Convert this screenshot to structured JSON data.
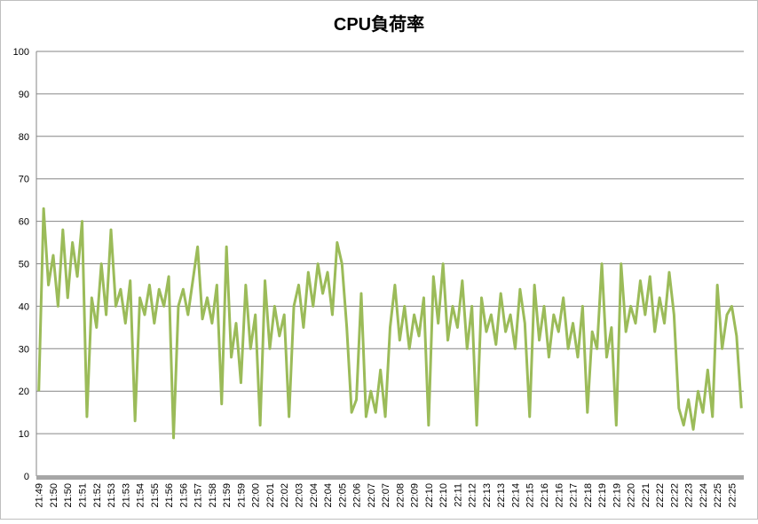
{
  "chart_data": {
    "type": "line",
    "title": "CPU負荷率",
    "categories": [
      "21:49",
      null,
      null,
      "21:50",
      null,
      null,
      "21:50",
      null,
      null,
      "21:51",
      null,
      null,
      "21:52",
      null,
      null,
      "21:53",
      null,
      null,
      "21:53",
      null,
      null,
      "21:54",
      null,
      null,
      "21:55",
      null,
      null,
      "21:56",
      null,
      null,
      "21:56",
      null,
      null,
      "21:57",
      null,
      null,
      "21:58",
      null,
      null,
      "21:59",
      null,
      null,
      "21:59",
      null,
      null,
      "22:00",
      null,
      null,
      "22:01",
      null,
      null,
      "22:02",
      null,
      null,
      "22:03",
      null,
      null,
      "22:04",
      null,
      null,
      "22:04",
      null,
      null,
      "22:05",
      null,
      null,
      "22:06",
      null,
      null,
      "22:07",
      null,
      null,
      "22:07",
      null,
      null,
      "22:08",
      null,
      null,
      "22:09",
      null,
      null,
      "22:10",
      null,
      null,
      "22:10",
      null,
      null,
      "22:11",
      null,
      null,
      "22:12",
      null,
      null,
      "22:13",
      null,
      null,
      "22:13",
      null,
      null,
      "22:14",
      null,
      null,
      "22:15",
      null,
      null,
      "22:16",
      null,
      null,
      "22:16",
      null,
      null,
      "22:17",
      null,
      null,
      "22:18",
      null,
      null,
      "22:19",
      null,
      null,
      "22:19",
      null,
      null,
      "22:20",
      null,
      null,
      "22:21",
      null,
      null,
      "22:22",
      null,
      null,
      "22:22",
      null,
      null,
      "22:23",
      null,
      null,
      "22:24",
      null,
      null,
      "22:25",
      null,
      null,
      "22:25",
      null,
      null
    ],
    "values": [
      20,
      63,
      45,
      52,
      40,
      58,
      42,
      55,
      47,
      60,
      14,
      42,
      35,
      50,
      38,
      58,
      40,
      44,
      36,
      46,
      13,
      42,
      38,
      45,
      36,
      44,
      40,
      47,
      9,
      40,
      44,
      38,
      46,
      54,
      37,
      42,
      36,
      45,
      17,
      54,
      28,
      36,
      22,
      45,
      30,
      38,
      12,
      46,
      30,
      40,
      33,
      38,
      14,
      40,
      45,
      35,
      48,
      40,
      50,
      43,
      48,
      38,
      55,
      50,
      35,
      15,
      18,
      43,
      14,
      20,
      15,
      25,
      14,
      35,
      45,
      32,
      40,
      30,
      38,
      33,
      42,
      12,
      47,
      36,
      50,
      32,
      40,
      35,
      46,
      30,
      40,
      12,
      42,
      34,
      38,
      31,
      43,
      34,
      38,
      30,
      44,
      36,
      14,
      45,
      32,
      40,
      28,
      38,
      34,
      42,
      30,
      36,
      28,
      40,
      15,
      34,
      30,
      50,
      28,
      35,
      12,
      50,
      34,
      40,
      36,
      46,
      38,
      47,
      34,
      42,
      36,
      48,
      38,
      16,
      12,
      18,
      11,
      20,
      15,
      25,
      14,
      45,
      30,
      38,
      40,
      33,
      16
    ],
    "color": "#9bbb59",
    "ylim": [
      0,
      100
    ],
    "yticks": [
      0,
      10,
      20,
      30,
      40,
      50,
      60,
      70,
      80,
      90,
      100
    ],
    "grid": true
  }
}
